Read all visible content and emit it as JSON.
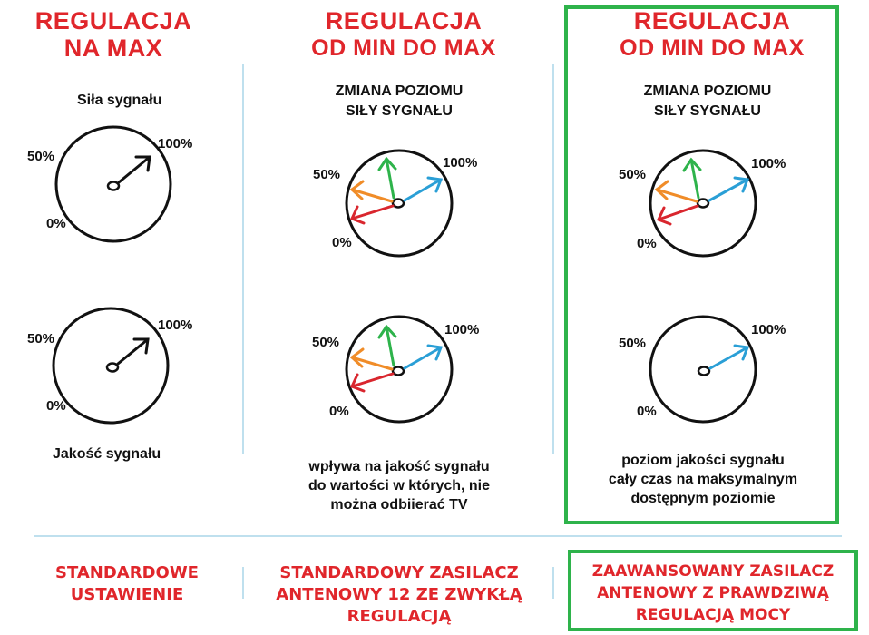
{
  "columns": [
    {
      "title_line1": "REGULACJA",
      "title_line2": "NA MAX",
      "top_label": "Siła sygnału",
      "bottom_label": "Jakość sygnału",
      "footer": [
        "STANDARDOWE",
        "USTAWIENIE"
      ]
    },
    {
      "title_line1": "REGULACJA",
      "title_line2": "OD MIN DO MAX",
      "subtitle": [
        "ZMIANA POZIOMU",
        "SIŁY SYGNAŁU"
      ],
      "description": [
        "wpływa na jakość sygnału",
        "do wartości w których, nie",
        "można odbiierać TV"
      ],
      "footer": [
        "STANDARDOWY ZASILACZ",
        "ANTENOWY 12 ZE ZWYKŁĄ",
        "REGULACJĄ"
      ]
    },
    {
      "title_line1": "REGULACJA",
      "title_line2": "OD MIN DO MAX",
      "subtitle": [
        "ZMIANA POZIOMU",
        "SIŁY SYGNAŁU"
      ],
      "description": [
        "poziom jakości sygnału",
        "cały czas na maksymalnym",
        "dostępnym poziomie"
      ],
      "footer": [
        "ZAAWANSOWANY ZASILACZ",
        "ANTENOWY Z PRAWDZIWĄ",
        "REGULACJĄ MOCY"
      ]
    }
  ],
  "dial_labels": {
    "max": "100%",
    "mid": "50%",
    "min": "0%"
  },
  "colors": {
    "title_red": "#e0262b",
    "highlight_green": "#2eb34b",
    "divider_blue": "#bfe0ee",
    "arrow_blue": "#2a9fd6",
    "arrow_green": "#2eb34b",
    "arrow_orange": "#f08c28",
    "arrow_red": "#d9262e",
    "arrow_black": "#111111"
  }
}
